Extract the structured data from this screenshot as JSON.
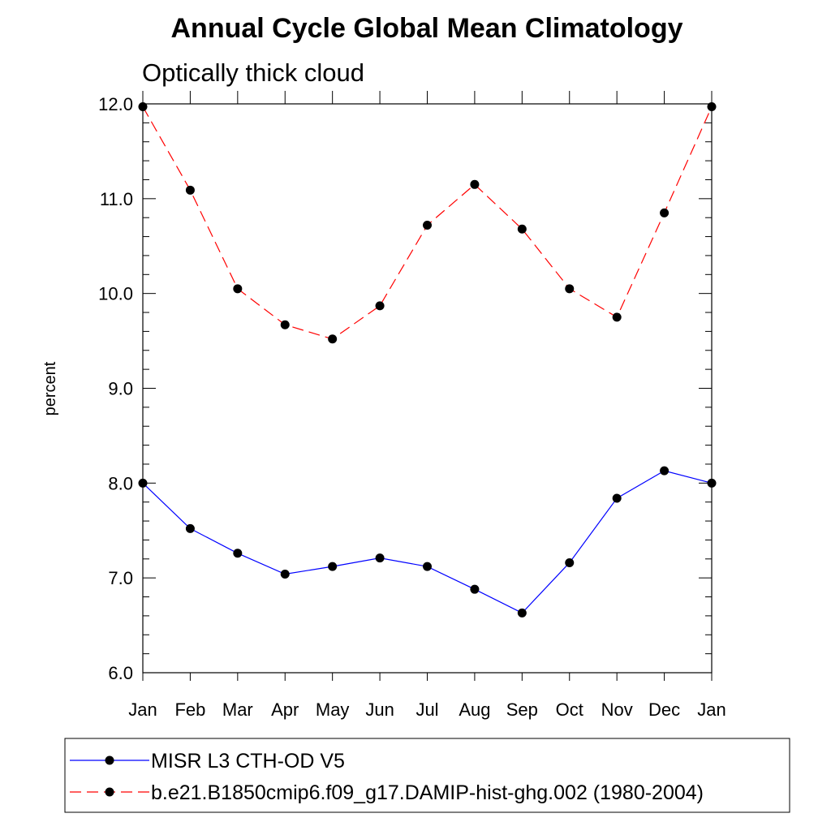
{
  "chart_data": {
    "type": "line",
    "title": "Annual Cycle Global Mean Climatology",
    "subtitle": "Optically thick cloud",
    "ylabel": "percent",
    "xlabel": "",
    "categories": [
      "Jan",
      "Feb",
      "Mar",
      "Apr",
      "May",
      "Jun",
      "Jul",
      "Aug",
      "Sep",
      "Oct",
      "Nov",
      "Dec",
      "Jan"
    ],
    "ylim": [
      6.0,
      12.0
    ],
    "yticks": [
      "6.0",
      "7.0",
      "8.0",
      "9.0",
      "10.0",
      "11.0",
      "12.0"
    ],
    "grid": false,
    "legend_position": "bottom",
    "series": [
      {
        "name": "MISR L3 CTH-OD V5",
        "color": "#0000ff",
        "dash": "solid",
        "marker": "filled-circle",
        "values": [
          8.0,
          7.52,
          7.26,
          7.04,
          7.12,
          7.21,
          7.12,
          6.88,
          6.63,
          7.16,
          7.84,
          8.13,
          8.0
        ]
      },
      {
        "name": "b.e21.B1850cmip6.f09_g17.DAMIP-hist-ghg.002 (1980-2004)",
        "color": "#ff0000",
        "dash": "dashed",
        "marker": "filled-circle",
        "values": [
          11.97,
          11.09,
          10.05,
          9.67,
          9.52,
          9.87,
          10.72,
          11.15,
          10.68,
          10.05,
          9.75,
          10.85,
          11.97
        ]
      }
    ]
  }
}
